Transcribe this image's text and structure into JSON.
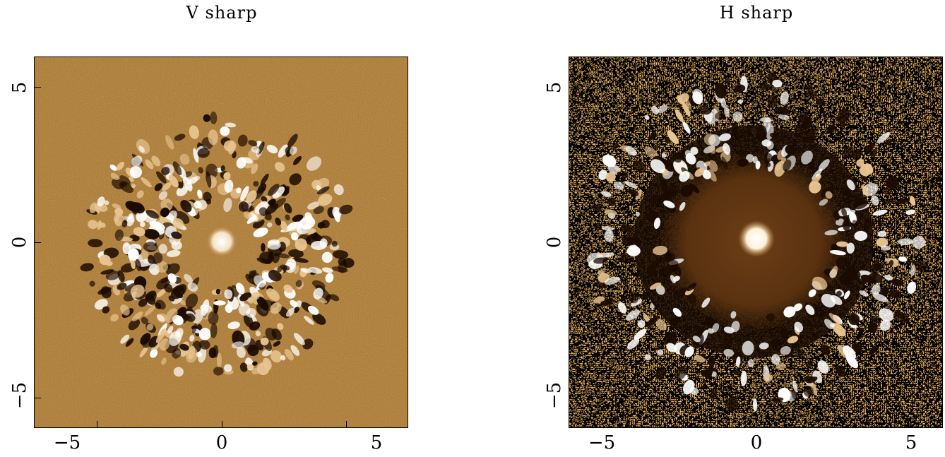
{
  "panels": [
    {
      "title": "V sharp",
      "x_ticks": [
        "−5",
        "0",
        "5"
      ],
      "y_ticks": [
        "5",
        "0",
        "−5"
      ],
      "colormap": [
        "#000000",
        "#8a4a10",
        "#b87a35",
        "#ffffff"
      ]
    },
    {
      "title": "H sharp",
      "x_ticks": [
        "−5",
        "0",
        "5"
      ],
      "y_ticks": [
        "5",
        "0",
        "−5"
      ],
      "colormap": [
        "#000000",
        "#8a4a10",
        "#c58a45",
        "#ffffff"
      ]
    }
  ]
}
